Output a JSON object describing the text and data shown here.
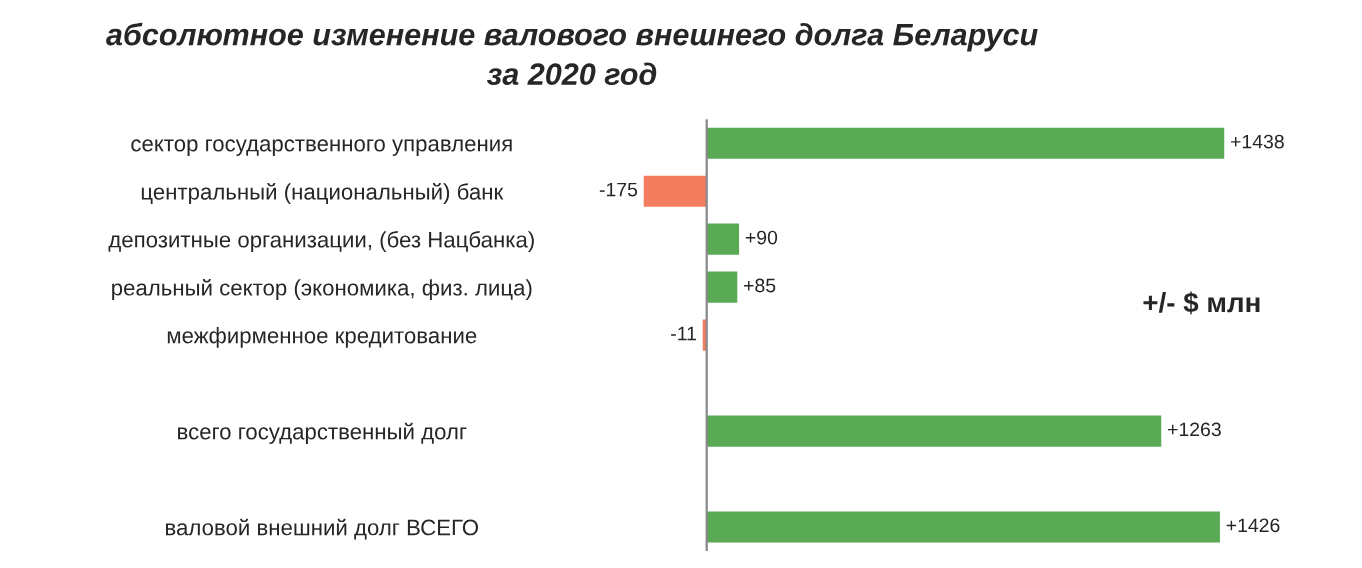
{
  "chart_data": {
    "type": "bar",
    "orientation": "horizontal",
    "title": "абсолютное изменение валового внешнего долга Беларуси\nза 2020 год",
    "categories": [
      "сектор государственного управления",
      "центральный (национальный) банк",
      "депозитные организации, (без Нацбанка)",
      "реальный сектор (экономика, физ. лица)",
      "межфирменное кредитование",
      null,
      "всего государственный долг",
      null,
      "валовой внешний долг ВСЕГО"
    ],
    "values": [
      1438,
      -175,
      90,
      85,
      -11,
      null,
      1263,
      null,
      1426
    ],
    "colors": [
      "#5aaa55",
      "#f47c5f",
      "#5aaa55",
      "#5aaa55",
      "#f47c5f",
      null,
      "#5aaa55",
      null,
      "#5aaa55"
    ],
    "value_labels": [
      "+1438",
      "-175",
      "+90",
      "+85",
      "-11",
      null,
      "+1263",
      null,
      "+1426"
    ],
    "annotations": [
      "+/- $ млн"
    ],
    "grid": false,
    "legend": false
  }
}
